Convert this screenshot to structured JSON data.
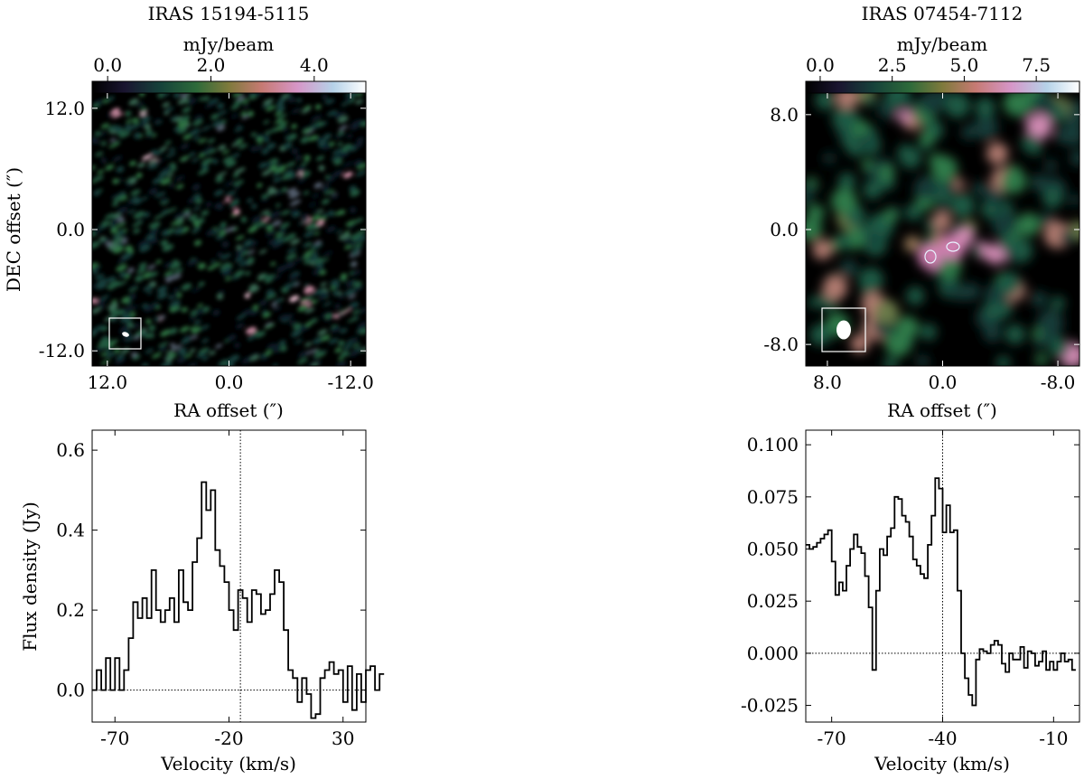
{
  "chart_data": [
    {
      "type": "heatmap",
      "title": "IRAS 15194-5115",
      "colorbar_label": "mJy/beam",
      "colorbar_ticks": [
        "0.0",
        "2.0",
        "4.0"
      ],
      "colorbar_range": [
        -0.3,
        5.0
      ],
      "xlabel": "RA offset (″)",
      "ylabel": "DEC offset (″)",
      "xticks": [
        "12.0",
        "0.0",
        "-12.0"
      ],
      "yticks": [
        "12.0",
        "0.0",
        "-12.0"
      ],
      "xlim": [
        13.5,
        -13.5
      ],
      "ylim": [
        -13.5,
        13.5
      ],
      "beam_box": true
    },
    {
      "type": "heatmap",
      "title": "IRAS 07454-7112",
      "colorbar_label": "mJy/beam",
      "colorbar_ticks": [
        "0.0",
        "2.5",
        "5.0",
        "7.5"
      ],
      "colorbar_range": [
        -0.5,
        9.0
      ],
      "xlabel": "RA offset (″)",
      "xticks": [
        "8.0",
        "0.0",
        "-8.0"
      ],
      "yticks": [
        "8.0",
        "0.0",
        "-8.0"
      ],
      "xlim": [
        9.5,
        -9.5
      ],
      "ylim": [
        -9.5,
        9.5
      ],
      "beam_box": true
    },
    {
      "type": "line",
      "style": "step",
      "xlabel": "Velocity (km/s)",
      "ylabel": "Flux density (Jy)",
      "xticks": [
        "-70",
        "-20",
        "30"
      ],
      "yticks": [
        "0.0",
        "0.2",
        "0.4",
        "0.6"
      ],
      "xlim": [
        -80,
        40
      ],
      "ylim": [
        -0.08,
        0.65
      ],
      "vline": -15,
      "hline": 0,
      "x_start": -80,
      "bin_width": 2,
      "values": [
        0.0,
        0.05,
        0.0,
        0.08,
        0.0,
        0.08,
        0.0,
        0.05,
        0.13,
        0.22,
        0.18,
        0.23,
        0.18,
        0.3,
        0.2,
        0.17,
        0.2,
        0.23,
        0.17,
        0.3,
        0.22,
        0.2,
        0.32,
        0.38,
        0.52,
        0.45,
        0.5,
        0.35,
        0.31,
        0.27,
        0.2,
        0.15,
        0.25,
        0.23,
        0.17,
        0.25,
        0.24,
        0.19,
        0.2,
        0.24,
        0.3,
        0.27,
        0.15,
        0.05,
        0.03,
        -0.03,
        0.03,
        -0.01,
        -0.07,
        -0.06,
        0.03,
        0.05,
        0.07,
        0.04,
        0.05,
        -0.03,
        0.06,
        -0.05,
        0.04,
        -0.03,
        0.05,
        0.06,
        0.0,
        0.04
      ]
    },
    {
      "type": "line",
      "style": "step",
      "xlabel": "Velocity (km/s)",
      "xticks": [
        "-70",
        "-40",
        "-10"
      ],
      "yticks": [
        "-0.025",
        "0.000",
        "0.025",
        "0.050",
        "0.075",
        "0.100"
      ],
      "xlim": [
        -77,
        -3
      ],
      "ylim": [
        -0.033,
        0.107
      ],
      "vline": -40,
      "hline": 0,
      "x_start": -77,
      "bin_width": 1,
      "values": [
        0.052,
        0.05,
        0.051,
        0.053,
        0.055,
        0.057,
        0.059,
        0.044,
        0.028,
        0.034,
        0.03,
        0.042,
        0.05,
        0.057,
        0.051,
        0.048,
        0.037,
        0.022,
        -0.008,
        0.03,
        0.05,
        0.047,
        0.056,
        0.06,
        0.075,
        0.074,
        0.066,
        0.063,
        0.056,
        0.045,
        0.042,
        0.038,
        0.036,
        0.052,
        0.066,
        0.084,
        0.079,
        0.058,
        0.071,
        0.058,
        0.059,
        0.03,
        0.0,
        -0.012,
        -0.02,
        -0.025,
        -0.003,
        0.002,
        0.001,
        0.0,
        0.004,
        0.006,
        0.004,
        -0.005,
        -0.009,
        0.0,
        -0.003,
        -0.003,
        0.003,
        -0.007,
        0.001,
        0.0,
        -0.006,
        -0.004,
        0.001,
        -0.008,
        -0.004,
        -0.008,
        -0.004,
        0.0,
        -0.004,
        -0.003,
        -0.008
      ]
    }
  ]
}
